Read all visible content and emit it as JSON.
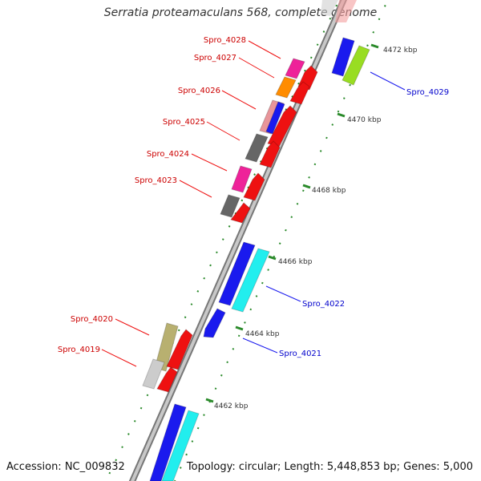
{
  "title": "Serratia proteamaculans 568, complete genome",
  "footer": {
    "accession": "Accession: NC_009832",
    "summary": "Topology: circular; Length: 5,448,853 bp; Genes: 5,000"
  },
  "colors": {
    "backbone": "#999999",
    "forward_label": "#0000cc",
    "reverse_label": "#cc0000",
    "tick": "#2a8a2a"
  },
  "scale_labels": [
    "4462 kbp",
    "4464 kbp",
    "4466 kbp",
    "4468 kbp",
    "4470 kbp",
    "4472 kbp"
  ],
  "gene_labels": {
    "reverse": [
      "Spro_4028",
      "Spro_4027",
      "Spro_4026",
      "Spro_4025",
      "Spro_4024",
      "Spro_4023",
      "Spro_4020",
      "Spro_4019"
    ],
    "forward": [
      "Spro_4029",
      "Spro_4022",
      "Spro_4021"
    ]
  }
}
